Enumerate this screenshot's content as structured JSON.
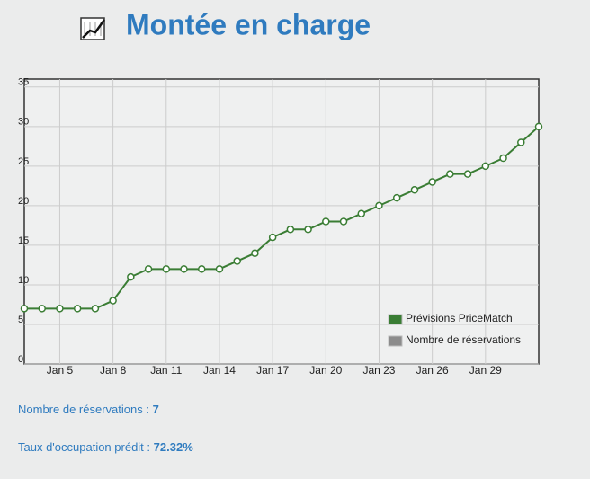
{
  "header": {
    "title": "Montée en charge"
  },
  "chart_data": {
    "type": "line",
    "categories": [
      null,
      null,
      "Jan 5",
      null,
      null,
      "Jan 8",
      null,
      null,
      "Jan 11",
      null,
      null,
      "Jan 14",
      null,
      null,
      "Jan 17",
      null,
      null,
      "Jan 20",
      null,
      null,
      "Jan 23",
      null,
      null,
      "Jan 26",
      null,
      null,
      "Jan 29",
      null,
      null,
      null
    ],
    "series": [
      {
        "name": "Prévisions PriceMatch",
        "color": "#3a7d34",
        "values": [
          7,
          7,
          7,
          7,
          7,
          8,
          11,
          12,
          12,
          12,
          12,
          12,
          13,
          14,
          16,
          17,
          17,
          18,
          18,
          19,
          20,
          21,
          22,
          23,
          24,
          24,
          25,
          26,
          28,
          30
        ]
      },
      {
        "name": "Nombre de réservations",
        "color": "#8c8c8c"
      }
    ],
    "ylim": [
      0,
      36
    ],
    "yticks": [
      0,
      5,
      10,
      15,
      20,
      25,
      30,
      35
    ],
    "grid": true,
    "legend": "lower right"
  },
  "stats": {
    "reservations": {
      "label": "Nombre de réservations :",
      "value": "7"
    },
    "occupation": {
      "label": "Taux d'occupation prédit :",
      "value": "72.32%"
    }
  }
}
